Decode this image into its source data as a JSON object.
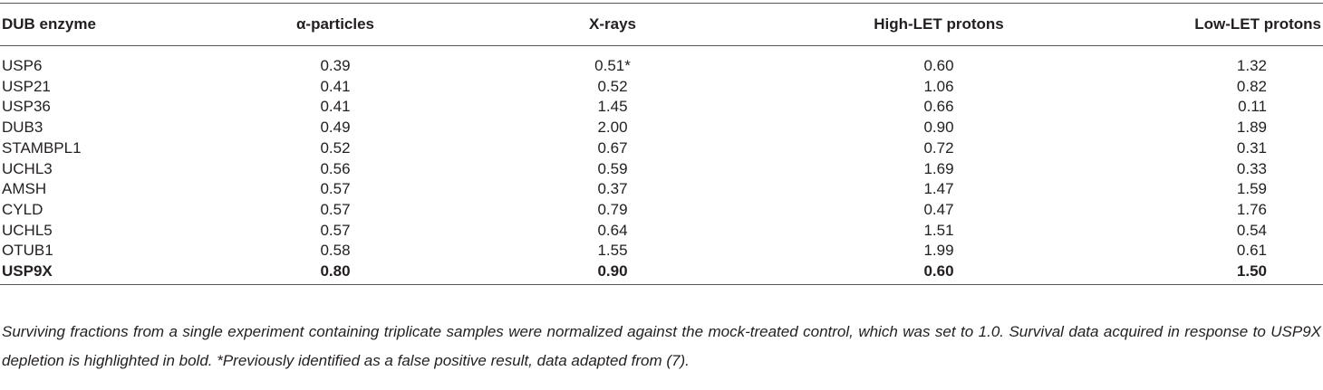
{
  "table": {
    "header": [
      "DUB enzyme",
      "α-particles",
      "X-rays",
      "High-LET protons",
      "Low-LET protons"
    ],
    "rows": [
      [
        "USP6",
        "0.39",
        "0.51*",
        "0.60",
        "1.32"
      ],
      [
        "USP21",
        "0.41",
        "0.52",
        "1.06",
        "0.82"
      ],
      [
        "USP36",
        "0.41",
        "1.45",
        "0.66",
        "0.11"
      ],
      [
        "DUB3",
        "0.49",
        "2.00",
        "0.90",
        "1.89"
      ],
      [
        "STAMBPL1",
        "0.52",
        "0.67",
        "0.72",
        "0.31"
      ],
      [
        "UCHL3",
        "0.56",
        "0.59",
        "1.69",
        "0.33"
      ],
      [
        "AMSH",
        "0.57",
        "0.37",
        "1.47",
        "1.59"
      ],
      [
        "CYLD",
        "0.57",
        "0.79",
        "0.47",
        "1.76"
      ],
      [
        "UCHL5",
        "0.57",
        "0.64",
        "1.51",
        "0.54"
      ],
      [
        "OTUB1",
        "0.58",
        "1.55",
        "1.99",
        "0.61"
      ],
      [
        "USP9X",
        "0.80",
        "0.90",
        "0.60",
        "1.50"
      ]
    ],
    "footnote": "Surviving fractions from a single experiment containing triplicate samples were normalized against the mock-treated control, which was set to 1.0. Survival data acquired in response to USP9X depletion is highlighted in bold. *Previously identified as a false positive result, data adapted from (7)."
  }
}
